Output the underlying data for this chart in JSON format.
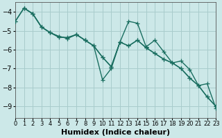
{
  "xlabel": "Humidex (Indice chaleur)",
  "background_color": "#cce8e8",
  "grid_color": "#a8cccc",
  "line_color": "#1a6e60",
  "xlim": [
    0,
    23
  ],
  "ylim": [
    -9.6,
    -3.5
  ],
  "yticks": [
    -9,
    -8,
    -7,
    -6,
    -5,
    -4
  ],
  "xticks": [
    0,
    1,
    2,
    3,
    4,
    5,
    6,
    7,
    8,
    9,
    10,
    11,
    12,
    13,
    14,
    15,
    16,
    17,
    18,
    19,
    20,
    21,
    22,
    23
  ],
  "line1_x": [
    0,
    1,
    2,
    3,
    4,
    5,
    6,
    7,
    8,
    9,
    10,
    11,
    12,
    13,
    14,
    15,
    16,
    17,
    18,
    19,
    20,
    21,
    22,
    23
  ],
  "line1_y": [
    -4.5,
    -3.8,
    -4.1,
    -4.8,
    -5.1,
    -5.3,
    -5.4,
    -5.2,
    -5.5,
    -5.8,
    -7.6,
    -7.0,
    -5.6,
    -4.5,
    -4.6,
    -5.85,
    -5.5,
    -6.1,
    -6.7,
    -6.6,
    -7.05,
    -7.9,
    -7.8,
    -9.1
  ],
  "line2_x": [
    0,
    1,
    2,
    3,
    4,
    5,
    6,
    7,
    8,
    9,
    10,
    11,
    12,
    13,
    14,
    15,
    16,
    17,
    18,
    19,
    20,
    21,
    22,
    23
  ],
  "line2_y": [
    -4.5,
    -3.8,
    -4.1,
    -4.8,
    -5.1,
    -5.3,
    -5.4,
    -5.2,
    -5.5,
    -5.8,
    -6.4,
    -6.9,
    -5.6,
    -5.8,
    -5.5,
    -5.9,
    -6.2,
    -6.5,
    -6.7,
    -7.0,
    -7.5,
    -7.9,
    -8.5,
    -9.0
  ],
  "line3_x": [
    1,
    2,
    3,
    4,
    5,
    6,
    7,
    8,
    9,
    10,
    11,
    12,
    13,
    14,
    15,
    16,
    17,
    18,
    19,
    20,
    21,
    22,
    23
  ],
  "line3_y": [
    -3.8,
    -4.1,
    -4.8,
    -5.1,
    -5.35,
    -5.35,
    -5.2,
    -5.5,
    -5.8,
    -6.4,
    -6.9,
    -5.6,
    -5.8,
    -5.5,
    -5.9,
    -6.2,
    -6.5,
    -6.7,
    -7.0,
    -7.5,
    -7.9,
    -8.5,
    -9.0
  ],
  "marker_size": 3,
  "line_width": 1.0,
  "font_size_label": 7,
  "font_size_tick": 6
}
